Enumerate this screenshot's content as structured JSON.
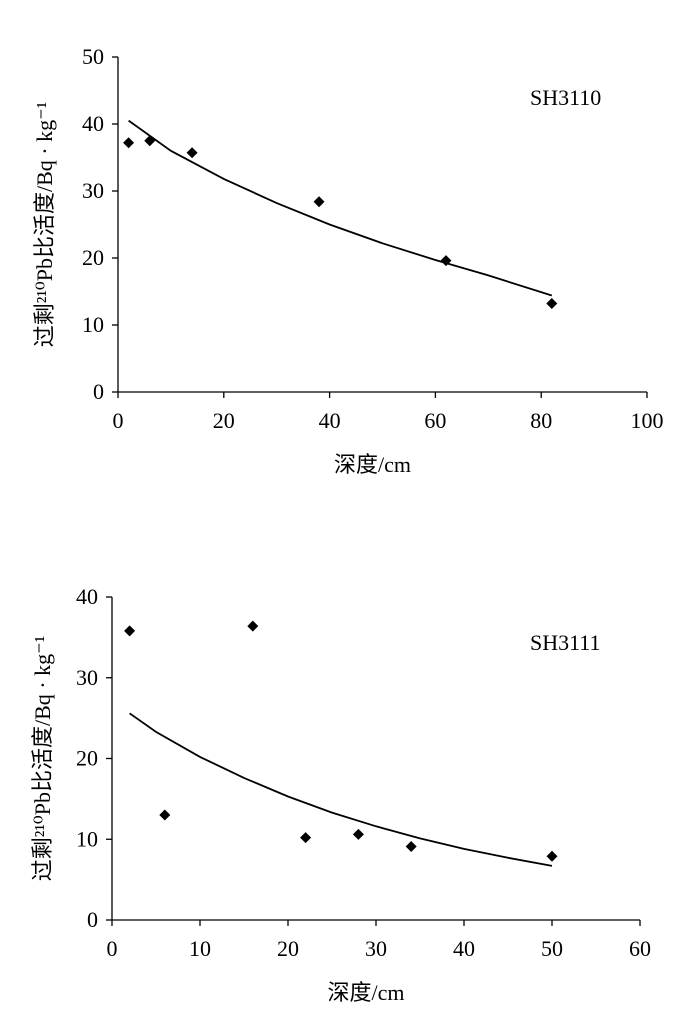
{
  "chart_data": [
    {
      "type": "scatter",
      "title": "SH3110",
      "xlabel": "深度/cm",
      "ylabel": "过剩²¹⁰Pb比活度/Bq · kg⁻¹",
      "xlim": [
        0,
        100
      ],
      "ylim": [
        0,
        50
      ],
      "xticks": [
        "0",
        "20",
        "40",
        "60",
        "80",
        "100"
      ],
      "yticks": [
        "0",
        "10",
        "20",
        "30",
        "40",
        "50"
      ],
      "series": [
        {
          "kind": "points",
          "marker": "diamond",
          "x": [
            2,
            6,
            14,
            38,
            62,
            82
          ],
          "y": [
            37.2,
            37.5,
            35.7,
            28.4,
            19.6,
            13.2
          ]
        },
        {
          "kind": "line",
          "x": [
            2,
            10,
            20,
            30,
            40,
            50,
            60,
            70,
            82
          ],
          "y": [
            40.5,
            36.0,
            31.8,
            28.2,
            25.0,
            22.2,
            19.7,
            17.4,
            14.4
          ]
        }
      ],
      "grid": false,
      "legend": "none"
    },
    {
      "type": "scatter",
      "title": "SH3111",
      "xlabel": "深度/cm",
      "ylabel": "过剩²¹⁰Pb比活度/Bq · kg⁻¹",
      "xlim": [
        0,
        60
      ],
      "ylim": [
        0,
        40
      ],
      "xticks": [
        "0",
        "10",
        "20",
        "30",
        "40",
        "50",
        "60"
      ],
      "yticks": [
        "0",
        "10",
        "20",
        "30",
        "40"
      ],
      "series": [
        {
          "kind": "points",
          "marker": "diamond",
          "x": [
            2,
            6,
            16,
            22,
            28,
            34,
            50
          ],
          "y": [
            35.8,
            13.0,
            36.4,
            10.2,
            10.6,
            9.1,
            7.9
          ]
        },
        {
          "kind": "line",
          "x": [
            2,
            5,
            10,
            15,
            20,
            25,
            30,
            35,
            40,
            45,
            50
          ],
          "y": [
            25.6,
            23.3,
            20.2,
            17.6,
            15.3,
            13.3,
            11.6,
            10.1,
            8.8,
            7.7,
            6.7
          ]
        }
      ],
      "grid": false,
      "legend": "none"
    }
  ]
}
